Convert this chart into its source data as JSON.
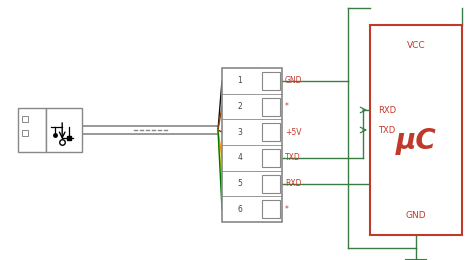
{
  "bg_color": "#ffffff",
  "line_color": "#888888",
  "wire_color": "#3a7d44",
  "red_color": "#c0392b",
  "pin_signals": [
    "GND",
    "*",
    "+5V",
    "TXD",
    "RXD",
    "*"
  ],
  "pin_numbers": [
    "1",
    "2",
    "3",
    "4",
    "5",
    "6"
  ],
  "wire_colors": [
    "#111111",
    "#8B4513",
    "#cc0000",
    "#ff8800",
    "#cccc00",
    "#007700"
  ],
  "uc_text": "μC",
  "vcc_text": "VCC",
  "rxd_text": "RXD",
  "txd_text": "TXD",
  "gnd_text": "GND"
}
